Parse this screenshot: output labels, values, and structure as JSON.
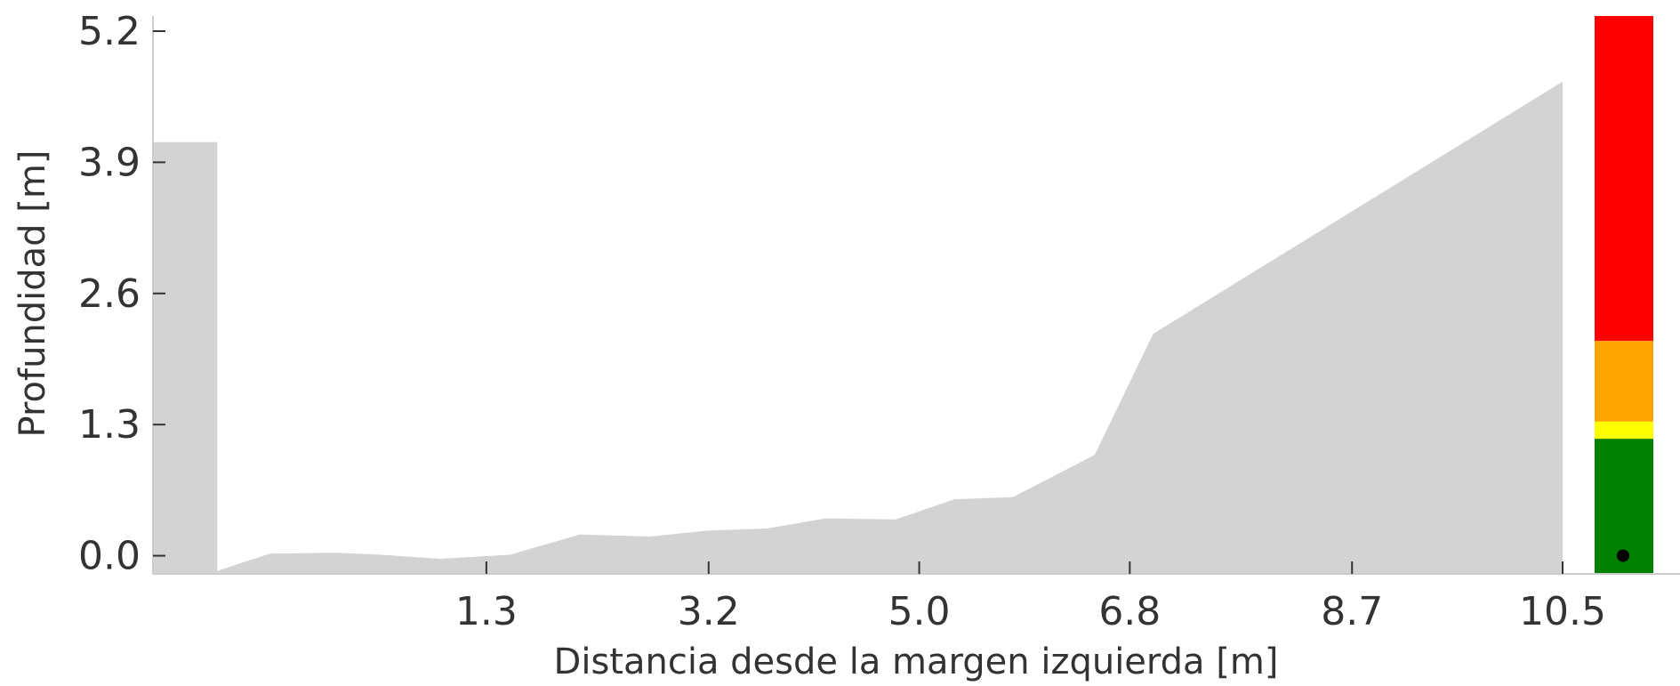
{
  "chart_data": {
    "type": "area",
    "title": "",
    "xlabel": "Distancia desde la margen izquierda [m]",
    "ylabel": "Profundidad [m]",
    "xticks": [
      "1.3",
      "3.2",
      "5.0",
      "6.8",
      "8.7",
      "10.5"
    ],
    "xtick_values": [
      1.3,
      3.2,
      5.0,
      6.8,
      8.7,
      10.5
    ],
    "yticks": [
      "0.0",
      "1.3",
      "2.6",
      "3.9",
      "5.2"
    ],
    "ytick_values": [
      0.0,
      1.3,
      2.6,
      3.9,
      5.2
    ],
    "xlim": [
      -1.55,
      10.5
    ],
    "ylim": [
      -0.18,
      5.35
    ],
    "grid": false,
    "fill_color": "#d3d3d3",
    "profile": {
      "x": [
        -1.55,
        -1.0,
        -1.0,
        -0.55,
        0.0,
        0.4,
        0.9,
        1.5,
        2.1,
        2.7,
        3.2,
        3.7,
        4.2,
        4.8,
        5.3,
        5.8,
        6.2,
        6.5,
        7.0,
        10.5
      ],
      "y": [
        4.1,
        4.1,
        -0.15,
        0.02,
        0.03,
        0.01,
        -0.03,
        0.01,
        0.21,
        0.19,
        0.25,
        0.27,
        0.37,
        0.36,
        0.56,
        0.58,
        0.82,
        1.0,
        2.2,
        4.7
      ]
    },
    "gauge": {
      "range": [
        -0.18,
        5.35
      ],
      "bands": [
        {
          "from": -0.18,
          "to": 1.16,
          "color": "#008000"
        },
        {
          "from": 1.16,
          "to": 1.33,
          "color": "#ffff00"
        },
        {
          "from": 1.33,
          "to": 2.13,
          "color": "#ffa500"
        },
        {
          "from": 2.13,
          "to": 5.35,
          "color": "#ff0000"
        }
      ],
      "marker_value": 0.0,
      "marker_color": "#000000"
    }
  }
}
